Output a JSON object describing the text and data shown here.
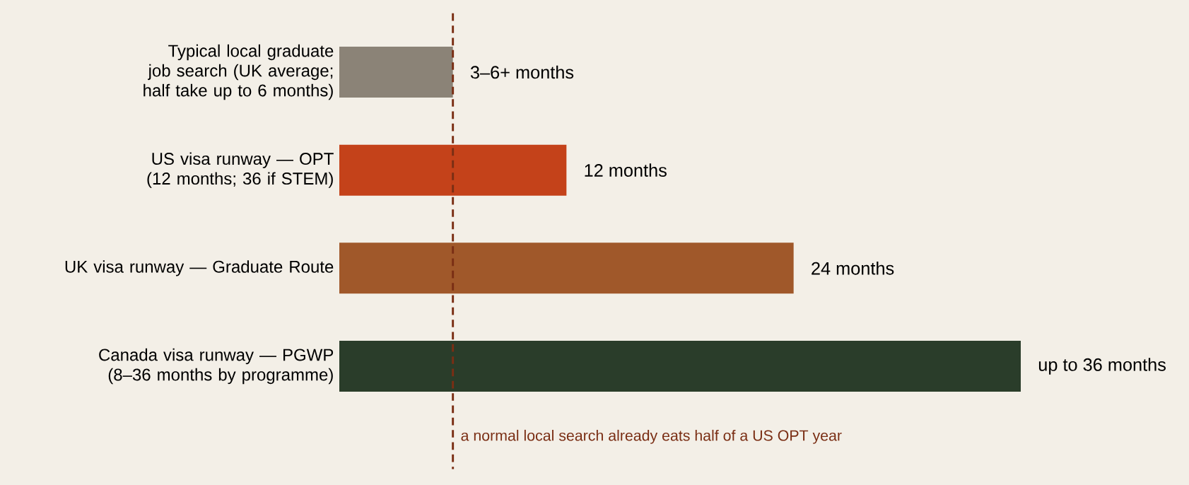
{
  "chart_data": {
    "type": "bar",
    "orientation": "horizontal",
    "categories": [
      "Typical local graduate job search (UK average; half take up to 6 months)",
      "US visa runway — OPT (12 months; 36 if STEM)",
      "UK visa runway — Graduate Route",
      "Canada visa runway — PGWP (8–36 months by programme)"
    ],
    "values": [
      6,
      12,
      24,
      36
    ],
    "colors": [
      "#8b8377",
      "#c4421a",
      "#a0582a",
      "#2a3d2a"
    ],
    "value_labels": [
      "3–6+ months",
      "12 months",
      "24 months",
      "up to 36 months"
    ],
    "ref_lines": [
      {
        "axis": "x",
        "value": 6,
        "label": "a normal local search already eats half of a US OPT year",
        "color": "#7a2e14",
        "line_style": "dashed"
      }
    ]
  }
}
